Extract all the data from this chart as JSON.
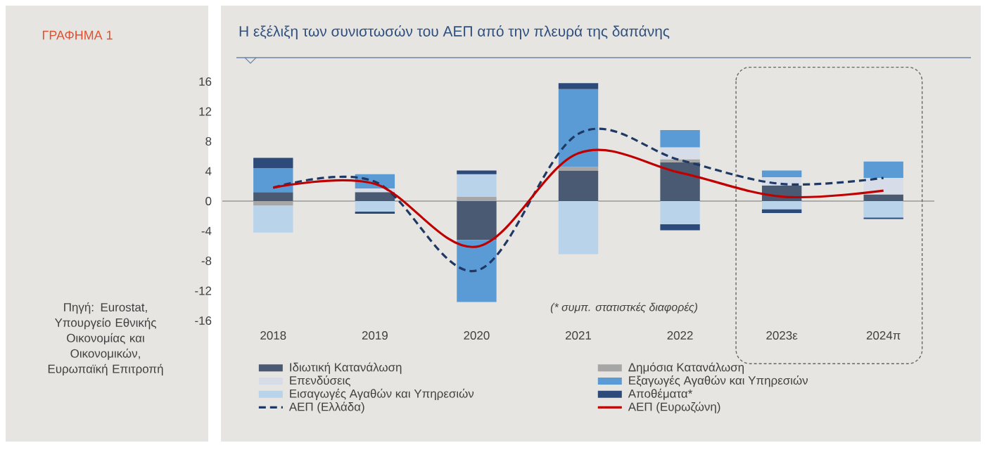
{
  "chart_data": {
    "type": "bar",
    "stacked": true,
    "title": "Η εξέλιξη των συνιστωσών του ΑΕΠ από την πλευρά της δαπάνης",
    "categories": [
      "2018",
      "2019",
      "2020",
      "2021",
      "2022",
      "2023ε",
      "2024π"
    ],
    "ylim": [
      -16,
      16
    ],
    "yticks": [
      -16,
      -12,
      -8,
      -4,
      0,
      4,
      8,
      12,
      16
    ],
    "legend": "bottom",
    "series": [
      {
        "name": "Ιδιωτική Κατανάλωση",
        "color": "#4a5a72",
        "values": [
          1.2,
          1.2,
          -5.2,
          4.1,
          5.2,
          2.1,
          0.9
        ]
      },
      {
        "name": "Δημόσια Κατανάλωση",
        "color": "#a6a6a6",
        "values": [
          -0.6,
          null,
          0.6,
          0.5,
          0.4,
          null,
          null
        ]
      },
      {
        "name": "Επενδύσεις",
        "color": "#d6dde8",
        "values": [
          null,
          0.5,
          null,
          null,
          1.6,
          1.1,
          2.2
        ]
      },
      {
        "name": "Εξαγωγές Αγαθών και Υπηρεσιών",
        "color": "#5b9bd5",
        "values": [
          3.2,
          1.9,
          -8.3,
          10.4,
          2.3,
          0.9,
          2.2
        ]
      },
      {
        "name": "Εισαγωγές Αγαθών και Υπηρεσιών",
        "color": "#b8d3ea",
        "values": [
          -3.6,
          -1.4,
          3.0,
          -7.1,
          -3.1,
          -1.1,
          -2.2
        ]
      },
      {
        "name": "Αποθέματα*",
        "color": "#2c4a7a",
        "values": [
          1.4,
          -0.3,
          0.5,
          0.8,
          -0.8,
          -0.5,
          -0.2
        ]
      },
      {
        "name": "ΑΕΠ (Ελλάδα)",
        "type": "line",
        "line_style": "dashed",
        "color": "#1f3864",
        "values": [
          1.8,
          2.6,
          -9.3,
          9.0,
          5.5,
          2.3,
          3.1
        ]
      },
      {
        "name": "ΑΕΠ (Ευρωζώνη)",
        "type": "line",
        "line_style": "solid",
        "color": "#c00000",
        "values": [
          1.8,
          2.3,
          -6.1,
          6.4,
          3.8,
          0.6,
          1.4
        ]
      }
    ],
    "annotations": [
      "ΓΡΑΦΗΜΑ 1",
      "Πηγή: Eurostat, Υπουργείο Εθνικής Οικονομίας και Οικονομικών, Ευρωπαϊκή Επιτροπή",
      "(* συμπ. στατιστκές διαφορές)"
    ]
  }
}
